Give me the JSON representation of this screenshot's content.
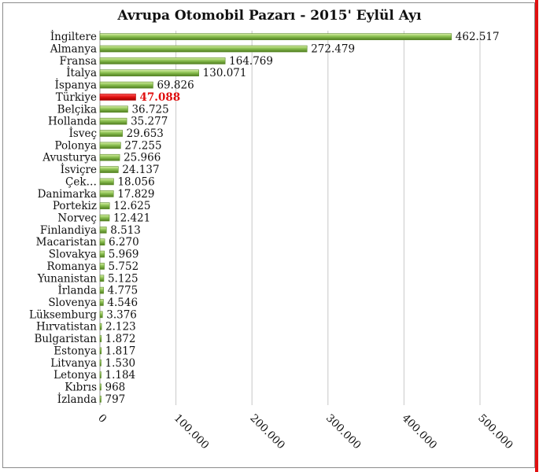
{
  "chart_data": {
    "type": "bar",
    "orientation": "horizontal",
    "title": "Avrupa Otomobil Pazarı - 2015' Eylül Ayı",
    "categories": [
      "İngiltere",
      "Almanya",
      "Fransa",
      "İtalya",
      "İspanya",
      "Türkiye",
      "Belçika",
      "Hollanda",
      "İsveç",
      "Polonya",
      "Avusturya",
      "İsviçre",
      "Çek…",
      "Danimarka",
      "Portekiz",
      "Norveç",
      "Finlandiya",
      "Macaristan",
      "Slovakya",
      "Romanya",
      "Yunanistan",
      "İrlanda",
      "Slovenya",
      "Lüksemburg",
      "Hırvatistan",
      "Bulgaristan",
      "Estonya",
      "Litvanya",
      "Letonya",
      "Kıbrıs",
      "İzlanda"
    ],
    "values": [
      462517,
      272479,
      164769,
      130071,
      69826,
      47088,
      36725,
      35277,
      29653,
      27255,
      25966,
      24137,
      18056,
      17829,
      12625,
      12421,
      8513,
      6270,
      5969,
      5752,
      5125,
      4775,
      4546,
      3376,
      2123,
      1872,
      1817,
      1530,
      1184,
      968,
      797
    ],
    "value_labels": [
      "462.517",
      "272.479",
      "164.769",
      "130.071",
      "69.826",
      "47.088",
      "36.725",
      "35.277",
      "29.653",
      "27.255",
      "25.966",
      "24.137",
      "18.056",
      "17.829",
      "12.625",
      "12.421",
      "8.513",
      "6.270",
      "5.969",
      "5.752",
      "5.125",
      "4.775",
      "4.546",
      "3.376",
      "2.123",
      "1.872",
      "1.817",
      "1.530",
      "1.184",
      "968",
      "797"
    ],
    "highlight_category": "Türkiye",
    "xlim": [
      0,
      500000
    ],
    "x_ticks": [
      0,
      100000,
      200000,
      300000,
      400000,
      500000
    ],
    "x_tick_labels": [
      "0",
      "100.000",
      "200.000",
      "300.000",
      "400.000",
      "500.000"
    ],
    "grid": true,
    "legend": "none",
    "colors": {
      "bar": "#8cc152",
      "bar_light": "#d9efa6",
      "bar_dark": "#4f7d1f",
      "highlight_bar": "#e01010",
      "highlight_label": "#e01010",
      "grid": "#c8c8c8",
      "border_accent": "#e01010"
    }
  }
}
